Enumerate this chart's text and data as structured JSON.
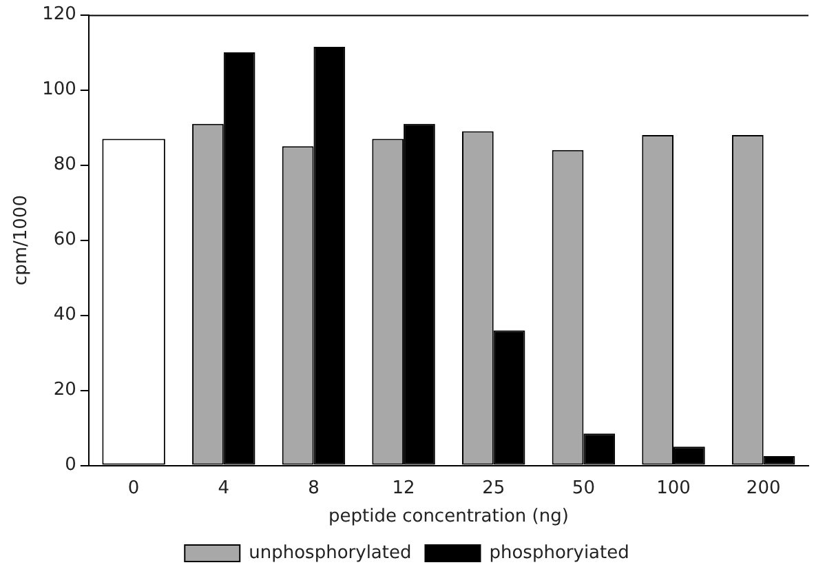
{
  "chart_data": {
    "type": "bar",
    "xlabel": "peptide concentration (ng)",
    "ylabel": "cpm/1000",
    "categories": [
      "0",
      "4",
      "8",
      "12",
      "25",
      "50",
      "100",
      "200"
    ],
    "series": [
      {
        "color": "#ffffff",
        "values": [
          87,
          null,
          null,
          null,
          null,
          null,
          null,
          null
        ]
      },
      {
        "name": "unphosphorylated",
        "color": "#a8a8a8",
        "values": [
          null,
          91,
          85,
          87,
          89,
          84,
          88,
          88
        ]
      },
      {
        "name": "phosphoryiated",
        "color": "#000000",
        "values": [
          null,
          110,
          111.5,
          91,
          36,
          8.5,
          5,
          2.5
        ]
      }
    ],
    "ylim": [
      0,
      120
    ],
    "yticks": [
      0,
      20,
      40,
      60,
      80,
      100,
      120
    ],
    "grid": false,
    "legend": "bottom"
  }
}
